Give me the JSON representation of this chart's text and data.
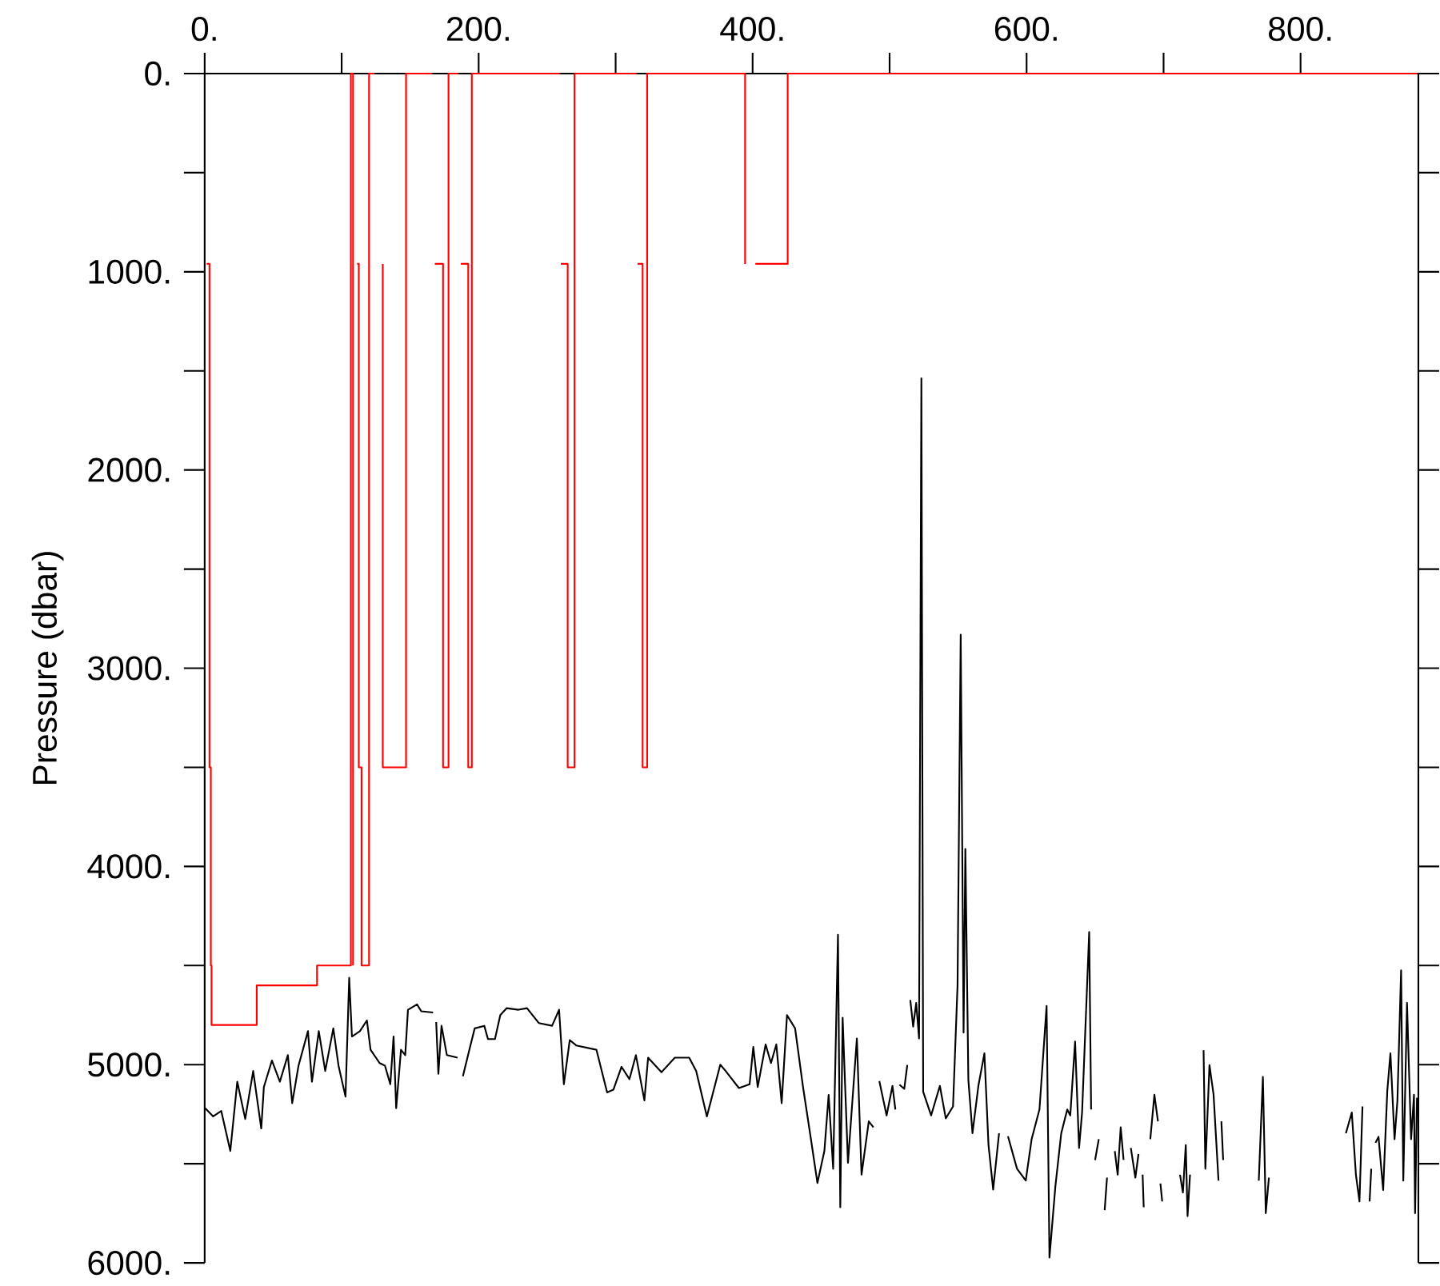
{
  "chart_data": {
    "type": "line",
    "ylabel": "Pressure (dbar)",
    "xlim": [
      0,
      886
    ],
    "ylim": [
      6000,
      0
    ],
    "xticks": [
      {
        "value": 0,
        "label": "0."
      },
      {
        "value": 100,
        "label": null
      },
      {
        "value": 200,
        "label": "200."
      },
      {
        "value": 300,
        "label": null
      },
      {
        "value": 400,
        "label": "400."
      },
      {
        "value": 500,
        "label": null
      },
      {
        "value": 600,
        "label": "600."
      },
      {
        "value": 700,
        "label": null
      },
      {
        "value": 800,
        "label": "800."
      }
    ],
    "yticks": [
      {
        "value": 0,
        "label": "0."
      },
      {
        "value": 500,
        "label": null
      },
      {
        "value": 1000,
        "label": "1000."
      },
      {
        "value": 1500,
        "label": null
      },
      {
        "value": 2000,
        "label": "2000."
      },
      {
        "value": 2500,
        "label": null
      },
      {
        "value": 3000,
        "label": "3000."
      },
      {
        "value": 3500,
        "label": null
      },
      {
        "value": 4000,
        "label": "4000."
      },
      {
        "value": 4500,
        "label": null
      },
      {
        "value": 5000,
        "label": "5000."
      },
      {
        "value": 5500,
        "label": null
      },
      {
        "value": 6000,
        "label": "6000."
      }
    ],
    "series": [
      {
        "color": "#ff0000",
        "x": [
          1.5,
          3.5,
          3.5,
          4.5,
          4.5,
          5,
          5,
          38,
          38,
          82,
          82,
          106.7,
          106.7,
          108.3,
          108.3,
          null,
          111.3,
          112.5,
          112.5,
          114.5,
          114.5,
          120,
          120,
          124,
          null,
          130,
          130,
          147,
          147,
          166,
          null,
          168,
          174,
          174,
          178,
          178,
          185,
          null,
          187,
          192.4,
          192.4,
          195,
          195,
          259,
          null,
          260,
          265,
          265,
          270,
          270,
          315,
          null,
          316,
          319.7,
          319.7,
          323,
          323,
          394.5,
          394.5,
          null,
          402,
          425.6,
          425.6,
          885
        ],
        "values": [
          960,
          960,
          3500,
          3500,
          4500,
          4500,
          4800,
          4800,
          4600,
          4600,
          4500,
          4500,
          0,
          0,
          4500,
          null,
          960,
          960,
          3500,
          3500,
          4500,
          4500,
          0,
          0,
          null,
          960,
          3500,
          3500,
          0,
          0,
          null,
          960,
          960,
          3500,
          3500,
          0,
          0,
          null,
          960,
          960,
          3500,
          3500,
          0,
          0,
          null,
          960,
          960,
          3500,
          3500,
          0,
          0,
          null,
          960,
          960,
          3500,
          3500,
          0,
          0,
          960,
          null,
          960,
          960,
          0,
          0
        ]
      },
      {
        "color": "#000000",
        "x": [
          0.4,
          6.2,
          12.1,
          18.7,
          23.8,
          29.6,
          35.4,
          41.3,
          43.2,
          49.1,
          54.9,
          60.7,
          63.9,
          68.5,
          75.4,
          78.3,
          83.3,
          88.0,
          93.9,
          97.7,
          102.8,
          105.5,
          107.5,
          113.3,
          118.4,
          121.1,
          127.7,
          131.6,
          135.5,
          137.9,
          139.8,
          143.3,
          146.4,
          148.4,
          155.0,
          158.1,
          166.7,
          null,
          169.0,
          170.6,
          172.9,
          176.8,
          184.6,
          null,
          188.5,
          193.2,
          197.1,
          204.1,
          206.8,
          211.9,
          215.8,
          220.5,
          229.1,
          235.3,
          243.9,
          253.6,
          258.7,
          262.2,
          266.5,
          271.2,
          286.0,
          293.8,
          298.4,
          304.3,
          310.1,
          314.8,
          321.0,
          323.7,
          333.5,
          343.2,
          353.7,
          358.8,
          366.6,
          376.4,
          380.3,
          390.0,
          397.8,
          400.5,
          403.7,
          409.5,
          413.4,
          417.3,
          421.2,
          425.1,
          431.0,
          436.8,
          442.7,
          447.3,
          452.4,
          455.5,
          458.8,
          462.3,
          464.0,
          465.7,
          469.6,
          476.1,
          479.5,
          484.8,
          488.2,
          null,
          492.5,
          497.8,
          502.1,
          504.2,
          null,
          507.2,
          510.7,
          512.9,
          null,
          515.1,
          517.2,
          519.4,
          521.5,
          523.2,
          524.5,
          530.3,
          536.7,
          541.0,
          546.3,
          549.6,
          551.9,
          554.0,
          555.3,
          557.5,
          560.5,
          564.8,
          569.2,
          572.2,
          575.6,
          579.9,
          null,
          586.4,
          593.0,
          599.4,
          603.7,
          609.4,
          614.6,
          616.7,
          621.0,
          625.3,
          629.7,
          631.9,
          635.4,
          638.3,
          640.5,
          645.7,
          647.1,
          null,
          650.0,
          652.7,
          null,
          657.0,
          658.7,
          null,
          664.4,
          666.5,
          668.7,
          670.8,
          null,
          676.1,
          679.4,
          681.7,
          null,
          684.7,
          685.5,
          null,
          690.3,
          693.3,
          695.9,
          null,
          697.7,
          699.0,
          null,
          712.0,
          714.1,
          716.2,
          717.5,
          719.3,
          null,
          729.2,
          730.5,
          733.5,
          736.5,
          740.1,
          null,
          742.2,
          743.5,
          null,
          769.5,
          772.5,
          774.6,
          776.9,
          null,
          833.1,
          837.4,
          840.4,
          843.0,
          845.2,
          null,
          850.4,
          851.6,
          null,
          854.7,
          856.9,
          860.3,
          863.3,
          865.6,
          868.6,
          870.7,
          873.4,
          875.0,
          877.7,
          880.7,
          882.8,
          883.6,
          885.0
        ],
        "values": [
          5220,
          5261,
          5234,
          5435,
          5086,
          5274,
          5032,
          5322,
          5113,
          4979,
          5086,
          4952,
          5194,
          5005,
          4831,
          5086,
          4831,
          5032,
          4817,
          5005,
          5161,
          4562,
          4858,
          4831,
          4777,
          4925,
          4992,
          5005,
          5099,
          4858,
          5220,
          4925,
          4952,
          4723,
          4696,
          4731,
          4737,
          null,
          4785,
          5046,
          4804,
          4952,
          4965,
          null,
          5059,
          4925,
          4817,
          4804,
          4871,
          4871,
          4750,
          4715,
          4723,
          4715,
          4790,
          4804,
          4723,
          5099,
          4876,
          4903,
          4925,
          5140,
          5126,
          5011,
          5073,
          4952,
          5180,
          4965,
          5038,
          4965,
          4965,
          5032,
          5261,
          5000,
          5032,
          5118,
          5099,
          4911,
          5113,
          4898,
          4992,
          4898,
          5194,
          4750,
          4817,
          5113,
          5382,
          5597,
          5435,
          5153,
          5525,
          4345,
          5719,
          4763,
          5495,
          4868,
          5555,
          5286,
          5316,
          null,
          5083,
          5256,
          5107,
          5226,
          null,
          5101,
          5122,
          5002,
          null,
          4674,
          4808,
          4689,
          4868,
          1538,
          5137,
          5256,
          5107,
          5271,
          5211,
          4599,
          2831,
          4838,
          3912,
          5077,
          5346,
          5107,
          4943,
          5406,
          5630,
          5346,
          null,
          5361,
          5525,
          5585,
          5375,
          5226,
          4704,
          5973,
          5615,
          5346,
          5226,
          5256,
          4883,
          5420,
          5242,
          4331,
          5226,
          null,
          5481,
          5376,
          null,
          5734,
          5570,
          null,
          5436,
          5555,
          5316,
          5481,
          null,
          5420,
          5570,
          5451,
          null,
          5555,
          5719,
          null,
          5376,
          5152,
          5286,
          null,
          5600,
          5690,
          null,
          5555,
          5645,
          5406,
          5764,
          5555,
          null,
          4927,
          5525,
          5002,
          5152,
          5585,
          null,
          5286,
          5481,
          null,
          5585,
          5062,
          5749,
          5570,
          null,
          5346,
          5241,
          5555,
          5690,
          5211,
          null,
          5690,
          5525,
          null,
          5394,
          5364,
          5632,
          5134,
          4943,
          5376,
          5182,
          4524,
          5585,
          4689,
          5376,
          5152,
          5749,
          5167
        ]
      }
    ]
  }
}
